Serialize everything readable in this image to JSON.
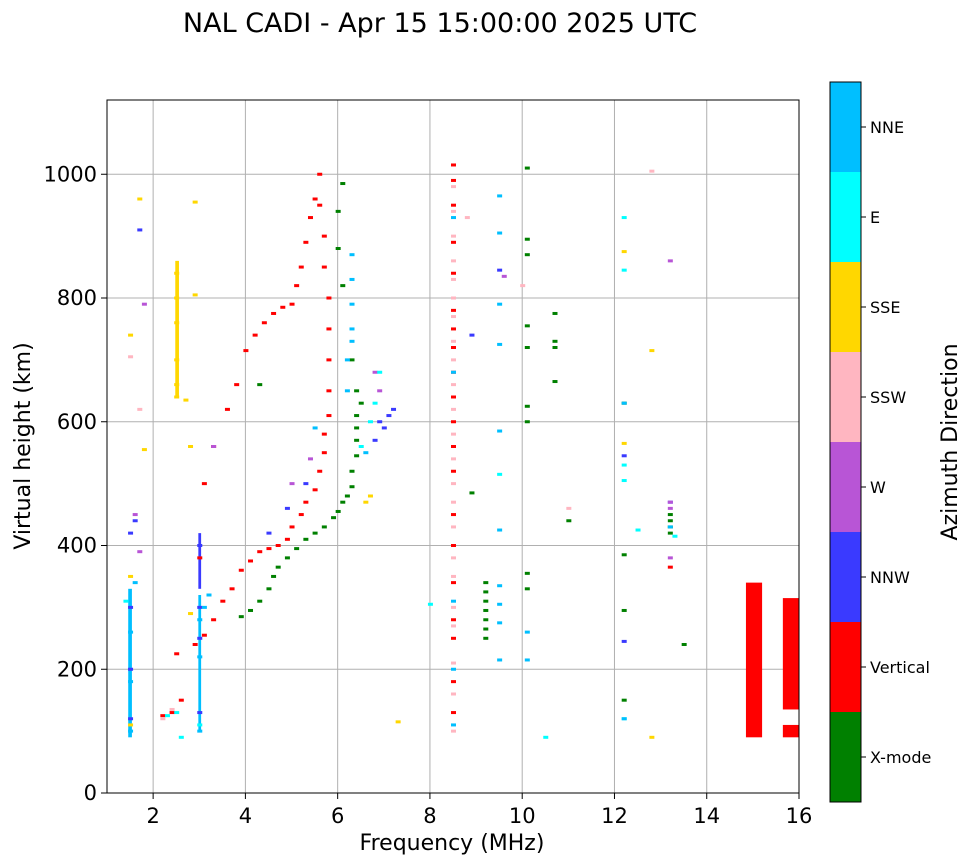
{
  "chart_data": {
    "type": "scatter",
    "title": "NAL CADI - Apr 15 15:00:00 2025 UTC",
    "xlabel": "Frequency (MHz)",
    "ylabel": "Virtual height (km)",
    "xlim": [
      1,
      16
    ],
    "ylim": [
      0,
      1120
    ],
    "xticks": [
      2,
      4,
      6,
      8,
      10,
      12,
      14,
      16
    ],
    "yticks": [
      0,
      200,
      400,
      600,
      800,
      1000
    ],
    "grid": true,
    "colorbar": {
      "label": "Azimuth Direction",
      "categories": [
        "X-mode",
        "Vertical",
        "NNW",
        "W",
        "SSW",
        "SSE",
        "E",
        "NNE"
      ],
      "colors": [
        "#008000",
        "#ff0000",
        "#3a3aff",
        "#b855d6",
        "#ffb6c1",
        "#ffd700",
        "#00ffff",
        "#00bfff"
      ]
    },
    "series": [
      {
        "name": "X-mode",
        "points": [
          [
            3.9,
            285
          ],
          [
            4.1,
            295
          ],
          [
            4.3,
            310
          ],
          [
            4.5,
            330
          ],
          [
            4.6,
            350
          ],
          [
            4.7,
            365
          ],
          [
            4.9,
            380
          ],
          [
            5.1,
            395
          ],
          [
            5.3,
            410
          ],
          [
            5.5,
            420
          ],
          [
            5.7,
            430
          ],
          [
            5.9,
            445
          ],
          [
            6.0,
            455
          ],
          [
            6.1,
            470
          ],
          [
            6.2,
            480
          ],
          [
            6.3,
            495
          ],
          [
            6.3,
            520
          ],
          [
            6.4,
            545
          ],
          [
            6.4,
            570
          ],
          [
            6.4,
            590
          ],
          [
            6.4,
            610
          ],
          [
            6.5,
            630
          ],
          [
            6.4,
            650
          ],
          [
            6.3,
            700
          ],
          [
            6.1,
            820
          ],
          [
            6.0,
            880
          ],
          [
            6.0,
            940
          ],
          [
            6.1,
            985
          ],
          [
            9.2,
            250
          ],
          [
            9.2,
            265
          ],
          [
            9.2,
            280
          ],
          [
            9.2,
            295
          ],
          [
            9.2,
            310
          ],
          [
            9.2,
            325
          ],
          [
            9.2,
            340
          ],
          [
            10.1,
            330
          ],
          [
            10.1,
            355
          ],
          [
            10.1,
            600
          ],
          [
            10.1,
            625
          ],
          [
            10.1,
            720
          ],
          [
            10.1,
            755
          ],
          [
            10.1,
            870
          ],
          [
            10.1,
            895
          ],
          [
            10.1,
            1010
          ],
          [
            10.7,
            665
          ],
          [
            10.7,
            775
          ],
          [
            10.7,
            720
          ],
          [
            10.7,
            730
          ],
          [
            11.0,
            440
          ],
          [
            12.2,
            150
          ],
          [
            12.2,
            295
          ],
          [
            12.2,
            385
          ],
          [
            12.2,
            630
          ],
          [
            13.2,
            420
          ],
          [
            13.2,
            430
          ],
          [
            13.2,
            440
          ],
          [
            13.2,
            450
          ],
          [
            13.5,
            240
          ],
          [
            8.9,
            485
          ],
          [
            4.3,
            660
          ]
        ]
      },
      {
        "name": "Vertical",
        "points": [
          [
            2.2,
            125
          ],
          [
            2.4,
            130
          ],
          [
            2.6,
            150
          ],
          [
            2.5,
            225
          ],
          [
            2.9,
            240
          ],
          [
            3.1,
            255
          ],
          [
            3.3,
            280
          ],
          [
            3.5,
            310
          ],
          [
            3.7,
            330
          ],
          [
            3.9,
            360
          ],
          [
            4.1,
            375
          ],
          [
            4.3,
            390
          ],
          [
            4.5,
            395
          ],
          [
            4.7,
            400
          ],
          [
            4.9,
            410
          ],
          [
            5.0,
            430
          ],
          [
            5.2,
            450
          ],
          [
            5.3,
            470
          ],
          [
            5.5,
            490
          ],
          [
            5.6,
            520
          ],
          [
            5.7,
            550
          ],
          [
            5.7,
            580
          ],
          [
            5.8,
            610
          ],
          [
            5.8,
            650
          ],
          [
            5.8,
            700
          ],
          [
            5.8,
            750
          ],
          [
            5.8,
            800
          ],
          [
            5.7,
            850
          ],
          [
            5.7,
            900
          ],
          [
            5.6,
            950
          ],
          [
            5.6,
            1000
          ],
          [
            5.5,
            960
          ],
          [
            5.4,
            930
          ],
          [
            5.3,
            890
          ],
          [
            5.2,
            850
          ],
          [
            5.1,
            820
          ],
          [
            5.0,
            790
          ],
          [
            4.8,
            785
          ],
          [
            4.6,
            775
          ],
          [
            4.4,
            760
          ],
          [
            4.2,
            740
          ],
          [
            4.0,
            715
          ],
          [
            3.8,
            660
          ],
          [
            3.6,
            620
          ],
          [
            3.3,
            560
          ],
          [
            3.1,
            500
          ],
          [
            3.0,
            380
          ],
          [
            8.5,
            130
          ],
          [
            8.5,
            180
          ],
          [
            8.5,
            250
          ],
          [
            8.5,
            280
          ],
          [
            8.5,
            340
          ],
          [
            8.5,
            400
          ],
          [
            8.5,
            450
          ],
          [
            8.5,
            520
          ],
          [
            8.5,
            560
          ],
          [
            8.5,
            600
          ],
          [
            8.5,
            640
          ],
          [
            8.5,
            680
          ],
          [
            8.5,
            720
          ],
          [
            8.5,
            750
          ],
          [
            8.5,
            780
          ],
          [
            8.5,
            840
          ],
          [
            8.5,
            890
          ],
          [
            8.5,
            950
          ],
          [
            8.5,
            990
          ],
          [
            8.5,
            1015
          ],
          [
            13.2,
            365
          ],
          [
            15.0,
            215
          ],
          [
            15.8,
            95
          ],
          [
            15.8,
            225
          ]
        ]
      },
      {
        "name": "NNW",
        "points": [
          [
            1.5,
            120
          ],
          [
            1.5,
            200
          ],
          [
            1.5,
            300
          ],
          [
            1.5,
            420
          ],
          [
            1.6,
            440
          ],
          [
            1.7,
            910
          ],
          [
            3.0,
            130
          ],
          [
            3.0,
            250
          ],
          [
            3.0,
            300
          ],
          [
            3.0,
            400
          ],
          [
            4.5,
            420
          ],
          [
            4.9,
            460
          ],
          [
            5.3,
            500
          ],
          [
            6.9,
            600
          ],
          [
            7.0,
            590
          ],
          [
            7.1,
            610
          ],
          [
            7.2,
            620
          ],
          [
            6.8,
            570
          ],
          [
            8.9,
            740
          ],
          [
            9.5,
            845
          ],
          [
            12.2,
            245
          ],
          [
            12.2,
            545
          ],
          [
            13.2,
            470
          ]
        ]
      },
      {
        "name": "W",
        "points": [
          [
            1.6,
            450
          ],
          [
            1.7,
            390
          ],
          [
            1.8,
            790
          ],
          [
            3.3,
            560
          ],
          [
            5.0,
            500
          ],
          [
            5.4,
            540
          ],
          [
            6.8,
            680
          ],
          [
            6.9,
            650
          ],
          [
            9.6,
            835
          ],
          [
            13.2,
            460
          ],
          [
            13.2,
            470
          ],
          [
            13.2,
            380
          ],
          [
            13.2,
            860
          ]
        ]
      },
      {
        "name": "SSW",
        "points": [
          [
            1.5,
            705
          ],
          [
            1.7,
            620
          ],
          [
            2.2,
            120
          ],
          [
            2.4,
            135
          ],
          [
            8.5,
            100
          ],
          [
            8.5,
            160
          ],
          [
            8.5,
            210
          ],
          [
            8.5,
            270
          ],
          [
            8.5,
            300
          ],
          [
            8.5,
            350
          ],
          [
            8.5,
            380
          ],
          [
            8.5,
            430
          ],
          [
            8.5,
            470
          ],
          [
            8.5,
            500
          ],
          [
            8.5,
            540
          ],
          [
            8.5,
            580
          ],
          [
            8.5,
            620
          ],
          [
            8.5,
            660
          ],
          [
            8.5,
            700
          ],
          [
            8.5,
            730
          ],
          [
            8.5,
            770
          ],
          [
            8.5,
            800
          ],
          [
            8.5,
            830
          ],
          [
            8.5,
            860
          ],
          [
            8.5,
            900
          ],
          [
            8.5,
            940
          ],
          [
            8.5,
            980
          ],
          [
            8.8,
            930
          ],
          [
            10.0,
            820
          ],
          [
            11.0,
            460
          ],
          [
            12.8,
            1005
          ]
        ]
      },
      {
        "name": "SSE",
        "points": [
          [
            1.5,
            110
          ],
          [
            1.5,
            350
          ],
          [
            1.5,
            740
          ],
          [
            1.7,
            960
          ],
          [
            1.8,
            555
          ],
          [
            2.5,
            640
          ],
          [
            2.5,
            660
          ],
          [
            2.5,
            700
          ],
          [
            2.5,
            760
          ],
          [
            2.5,
            800
          ],
          [
            2.5,
            840
          ],
          [
            2.7,
            635
          ],
          [
            2.8,
            560
          ],
          [
            2.9,
            955
          ],
          [
            2.9,
            805
          ],
          [
            2.8,
            290
          ],
          [
            6.6,
            470
          ],
          [
            6.7,
            480
          ],
          [
            7.3,
            115
          ],
          [
            12.2,
            565
          ],
          [
            12.2,
            875
          ],
          [
            12.8,
            90
          ],
          [
            12.8,
            715
          ]
        ]
      },
      {
        "name": "E",
        "points": [
          [
            1.4,
            310
          ],
          [
            2.3,
            125
          ],
          [
            2.5,
            130
          ],
          [
            2.6,
            90
          ],
          [
            3.0,
            110
          ],
          [
            6.5,
            560
          ],
          [
            6.7,
            600
          ],
          [
            6.8,
            630
          ],
          [
            6.9,
            680
          ],
          [
            8.0,
            305
          ],
          [
            9.5,
            515
          ],
          [
            10.5,
            90
          ],
          [
            12.2,
            120
          ],
          [
            12.2,
            505
          ],
          [
            12.2,
            530
          ],
          [
            12.2,
            845
          ],
          [
            12.2,
            930
          ],
          [
            12.5,
            425
          ],
          [
            13.3,
            415
          ]
        ]
      },
      {
        "name": "NNE",
        "points": [
          [
            1.5,
            100
          ],
          [
            1.5,
            180
          ],
          [
            1.5,
            260
          ],
          [
            1.6,
            340
          ],
          [
            3.0,
            100
          ],
          [
            3.0,
            220
          ],
          [
            3.0,
            280
          ],
          [
            3.1,
            300
          ],
          [
            3.2,
            320
          ],
          [
            5.5,
            590
          ],
          [
            6.2,
            650
          ],
          [
            6.2,
            700
          ],
          [
            6.3,
            730
          ],
          [
            6.3,
            750
          ],
          [
            6.3,
            790
          ],
          [
            6.3,
            830
          ],
          [
            6.3,
            870
          ],
          [
            6.6,
            550
          ],
          [
            8.5,
            110
          ],
          [
            8.5,
            200
          ],
          [
            8.5,
            310
          ],
          [
            8.5,
            680
          ],
          [
            8.5,
            930
          ],
          [
            9.5,
            215
          ],
          [
            9.5,
            275
          ],
          [
            9.5,
            305
          ],
          [
            9.5,
            335
          ],
          [
            9.5,
            425
          ],
          [
            9.5,
            585
          ],
          [
            9.5,
            725
          ],
          [
            9.5,
            790
          ],
          [
            9.5,
            905
          ],
          [
            9.5,
            965
          ],
          [
            10.1,
            215
          ],
          [
            10.1,
            260
          ],
          [
            12.2,
            120
          ],
          [
            12.2,
            630
          ],
          [
            13.2,
            430
          ]
        ]
      }
    ],
    "blocks": [
      {
        "series": "Vertical",
        "x0": 14.85,
        "x1": 15.2,
        "y0": 90,
        "y1": 340
      },
      {
        "series": "Vertical",
        "x0": 15.65,
        "x1": 16.0,
        "y0": 135,
        "y1": 315
      },
      {
        "series": "Vertical",
        "x0": 15.65,
        "x1": 16.0,
        "y0": 90,
        "y1": 110
      },
      {
        "series": "SSE",
        "x0": 2.48,
        "x1": 2.56,
        "y0": 640,
        "y1": 860
      },
      {
        "series": "NNE",
        "x0": 2.98,
        "x1": 3.04,
        "y0": 100,
        "y1": 320
      },
      {
        "series": "NNW",
        "x0": 2.98,
        "x1": 3.04,
        "y0": 330,
        "y1": 420
      },
      {
        "series": "NNE",
        "x0": 1.46,
        "x1": 1.54,
        "y0": 90,
        "y1": 330
      }
    ]
  }
}
